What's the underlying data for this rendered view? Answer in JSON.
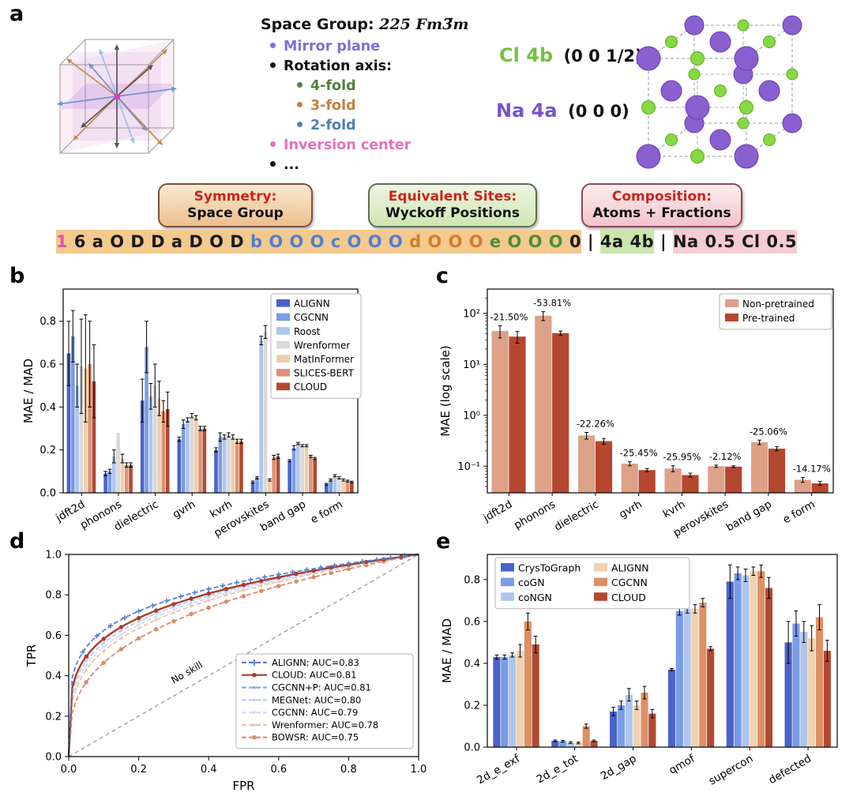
{
  "panels": {
    "a": {
      "label": "a",
      "space_group_label": "Space Group:",
      "space_group_value": "225 Fm3̅m",
      "legend_bullets": [
        {
          "text": "Mirror plane",
          "color": "#7a70d8",
          "level": 1
        },
        {
          "text": "Rotation axis:",
          "color": "#111111",
          "level": 1
        },
        {
          "text": "4-fold",
          "color": "#55803c",
          "level": 2
        },
        {
          "text": "3-fold",
          "color": "#c5803e",
          "level": 2
        },
        {
          "text": "2-fold",
          "color": "#4f7fba",
          "level": 2
        },
        {
          "text": "Inversion center",
          "color": "#e671bb",
          "level": 1
        },
        {
          "text": "...",
          "color": "#111111",
          "level": 1
        }
      ],
      "sites": [
        {
          "element_label": "Cl 4b",
          "coords": "(0 0 1/2)",
          "color": "#76c043"
        },
        {
          "element_label": "Na 4a",
          "coords": "(0 0 0)",
          "color": "#7a52c8"
        }
      ],
      "concept_boxes": [
        {
          "title": "Symmetry:",
          "subtitle": "Space Group"
        },
        {
          "title": "Equivalent Sites:",
          "subtitle": "Wyckoff Positions"
        },
        {
          "title": "Composition:",
          "subtitle": "Atoms + Fractions"
        }
      ],
      "encoding_segments": [
        {
          "text": "1",
          "color": "#e84fb0",
          "bg": "#f4c98e"
        },
        {
          "text": " 6 a O D D a D O D ",
          "color": "#1a1a1a",
          "bg": "#f4c98e"
        },
        {
          "text": "b O O O c O O O ",
          "color": "#4f7fd0",
          "bg": "#f4c98e"
        },
        {
          "text": "d O O O ",
          "color": "#cf7c2e",
          "bg": "#f4c98e"
        },
        {
          "text": "e O O O ",
          "color": "#4e8c3a",
          "bg": "#f4c98e"
        },
        {
          "text": "0",
          "color": "#1a1a1a",
          "bg": "#f4c98e"
        },
        {
          "text": " | ",
          "color": "#1a1a1a",
          "bg": ""
        },
        {
          "text": "4a 4b",
          "color": "#1a1a1a",
          "bg": "#cbe5ae"
        },
        {
          "text": " | ",
          "color": "#1a1a1a",
          "bg": ""
        },
        {
          "text": "Na 0.5 Cl 0.5",
          "color": "#1a1a1a",
          "bg": "#f6ccd4"
        }
      ]
    },
    "b": {
      "label": "b"
    },
    "c": {
      "label": "c"
    },
    "d": {
      "label": "d"
    },
    "e": {
      "label": "e"
    }
  },
  "chart_data": [
    {
      "panel": "b",
      "type": "bar",
      "ylabel": "MAE / MAD",
      "ylim": [
        0,
        0.95
      ],
      "yticks": [
        {
          "v": 0.0,
          "label": "0.0"
        },
        {
          "v": 0.2,
          "label": "0.2"
        },
        {
          "v": 0.4,
          "label": "0.4"
        },
        {
          "v": 0.6,
          "label": "0.6"
        },
        {
          "v": 0.8,
          "label": "0.8"
        }
      ],
      "categories": [
        "jdft2d",
        "phonons",
        "dielectric",
        "gvrh",
        "kvrh",
        "perovskites",
        "band gap",
        "e form"
      ],
      "legend_position": "upper right",
      "series": [
        {
          "name": "ALIGNN",
          "color": "#4a63c8",
          "values": [
            0.65,
            0.09,
            0.43,
            0.25,
            0.2,
            0.05,
            0.15,
            0.04
          ],
          "errors": [
            0.15,
            0.01,
            0.1,
            0.01,
            0.01,
            0.005,
            0.005,
            0.004
          ]
        },
        {
          "name": "CGCNN",
          "color": "#7b9ce6",
          "values": [
            0.73,
            0.1,
            0.68,
            0.32,
            0.26,
            0.07,
            0.21,
            0.06
          ],
          "errors": [
            0.12,
            0.01,
            0.12,
            0.02,
            0.02,
            0.005,
            0.01,
            0.005
          ]
        },
        {
          "name": "Roost",
          "color": "#aec6ec",
          "values": [
            0.5,
            0.17,
            0.45,
            0.34,
            0.26,
            0.71,
            0.23,
            0.08
          ],
          "errors": [
            0.1,
            0.03,
            0.06,
            0.01,
            0.01,
            0.02,
            0.005,
            0.005
          ]
        },
        {
          "name": "Wrenformer",
          "color": "#d9d9d9",
          "values": [
            0.59,
            0.28,
            0.5,
            0.36,
            0.27,
            0.75,
            0.22,
            0.07
          ],
          "errors": [
            0.22,
            0.0,
            0.1,
            0.01,
            0.01,
            0.03,
            0.005,
            0.005
          ]
        },
        {
          "name": "MatInFormer",
          "color": "#eccfad",
          "values": [
            0.58,
            0.16,
            0.44,
            0.35,
            0.26,
            0.06,
            0.22,
            0.06
          ],
          "errors": [
            0.25,
            0.02,
            0.08,
            0.01,
            0.01,
            0.005,
            0.005,
            0.005
          ]
        },
        {
          "name": "SLICES-BERT",
          "color": "#dc9377",
          "values": [
            0.6,
            0.13,
            0.38,
            0.3,
            0.24,
            0.165,
            0.17,
            0.055
          ],
          "errors": [
            0.2,
            0.01,
            0.05,
            0.01,
            0.01,
            0.01,
            0.005,
            0.004
          ]
        },
        {
          "name": "CLOUD",
          "color": "#b04a32",
          "values": [
            0.52,
            0.13,
            0.39,
            0.3,
            0.24,
            0.17,
            0.16,
            0.05
          ],
          "errors": [
            0.17,
            0.01,
            0.08,
            0.01,
            0.01,
            0.01,
            0.005,
            0.004
          ]
        }
      ]
    },
    {
      "panel": "c",
      "type": "bar",
      "yscale": "log",
      "ylabel": "MAE (log scale)",
      "ylim": [
        0.03,
        300
      ],
      "yticks": [
        {
          "v": 0.1,
          "label": "10⁻¹"
        },
        {
          "v": 1,
          "label": "10⁰"
        },
        {
          "v": 10,
          "label": "10¹"
        },
        {
          "v": 100,
          "label": "10²"
        }
      ],
      "categories": [
        "jdft2d",
        "phonons",
        "dielectric",
        "gvrh",
        "kvrh",
        "perovskites",
        "band gap",
        "e form"
      ],
      "annotations": [
        "-21.50%",
        "-53.81%",
        "-22.26%",
        "-25.45%",
        "-25.95%",
        "-2.12%",
        "-25.06%",
        "-14.17%"
      ],
      "legend_position": "upper right",
      "series": [
        {
          "name": "Non-pretrained",
          "color": "#dda189",
          "values": [
            45,
            90,
            0.4,
            0.112,
            0.09,
            0.1,
            0.295,
            0.054
          ],
          "errors": [
            12,
            18,
            0.06,
            0.01,
            0.012,
            0.005,
            0.03,
            0.006
          ]
        },
        {
          "name": "Pre-trained",
          "color": "#b4472f",
          "values": [
            35,
            41,
            0.31,
            0.084,
            0.067,
            0.098,
            0.221,
            0.046
          ],
          "errors": [
            9,
            4,
            0.04,
            0.006,
            0.006,
            0.004,
            0.02,
            0.004
          ]
        }
      ]
    },
    {
      "panel": "d",
      "type": "line",
      "xlabel": "FPR",
      "ylabel": "TPR",
      "xlim": [
        0,
        1
      ],
      "ylim": [
        0,
        1
      ],
      "xticks": [
        {
          "v": 0.0,
          "label": "0.0"
        },
        {
          "v": 0.2,
          "label": "0.2"
        },
        {
          "v": 0.4,
          "label": "0.4"
        },
        {
          "v": 0.6,
          "label": "0.6"
        },
        {
          "v": 0.8,
          "label": "0.8"
        },
        {
          "v": 1.0,
          "label": "1.0"
        }
      ],
      "yticks": [
        {
          "v": 0.0,
          "label": "0.0"
        },
        {
          "v": 0.2,
          "label": "0.2"
        },
        {
          "v": 0.4,
          "label": "0.4"
        },
        {
          "v": 0.6,
          "label": "0.6"
        },
        {
          "v": 0.8,
          "label": "0.8"
        },
        {
          "v": 1.0,
          "label": "1.0"
        }
      ],
      "no_skill_label": "No skill",
      "curves": [
        {
          "name": "ALIGNN: AUC=0.83",
          "auc": 0.83,
          "color": "#5d7fd3",
          "dash": true,
          "marker": "plus"
        },
        {
          "name": "CLOUD: AUC=0.81",
          "auc": 0.81,
          "color": "#a63f2b",
          "dash": false,
          "marker": "circle"
        },
        {
          "name": "CGCNN+P: AUC=0.81",
          "auc": 0.81,
          "color": "#8da9e6",
          "dash": true,
          "marker": "dot"
        },
        {
          "name": "MEGNet: AUC=0.80",
          "auc": 0.8,
          "color": "#b9cbee",
          "dash": true,
          "marker": "dot"
        },
        {
          "name": "CGCNN: AUC=0.79",
          "auc": 0.79,
          "color": "#d3def4",
          "dash": true,
          "marker": "dot"
        },
        {
          "name": "Wrenformer: AUC=0.78",
          "auc": 0.78,
          "color": "#ecc4ab",
          "dash": true,
          "marker": "dot"
        },
        {
          "name": "BOWSR: AUC=0.75",
          "auc": 0.75,
          "color": "#d98a6a",
          "dash": true,
          "marker": "circle"
        }
      ]
    },
    {
      "panel": "e",
      "type": "bar",
      "ylabel": "MAE / MAD",
      "ylim": [
        0,
        0.92
      ],
      "yticks": [
        {
          "v": 0.0,
          "label": "0.0"
        },
        {
          "v": 0.2,
          "label": "0.2"
        },
        {
          "v": 0.4,
          "label": "0.4"
        },
        {
          "v": 0.6,
          "label": "0.6"
        },
        {
          "v": 0.8,
          "label": "0.8"
        }
      ],
      "categories": [
        "2d_e_exf",
        "2d_e_tot",
        "2d_gap",
        "qmof",
        "supercon",
        "defected"
      ],
      "legend_position": "upper left",
      "series": [
        {
          "name": "CrysToGraph",
          "color": "#4a63c8",
          "values": [
            0.43,
            0.03,
            0.17,
            0.37,
            0.79,
            0.5
          ],
          "errors": [
            0.01,
            0.004,
            0.02,
            0.005,
            0.08,
            0.1
          ]
        },
        {
          "name": "coGN",
          "color": "#7b9ce6",
          "values": [
            0.43,
            0.028,
            0.2,
            0.65,
            0.83,
            0.59
          ],
          "errors": [
            0.01,
            0.004,
            0.02,
            0.02,
            0.03,
            0.06
          ]
        },
        {
          "name": "coNGN",
          "color": "#aec6ec",
          "values": [
            0.44,
            0.022,
            0.25,
            0.66,
            0.82,
            0.55
          ],
          "errors": [
            0.01,
            0.004,
            0.03,
            0.02,
            0.03,
            0.05
          ]
        },
        {
          "name": "ALIGNN",
          "color": "#eed2b2",
          "values": [
            0.46,
            0.02,
            0.2,
            0.66,
            0.84,
            0.52
          ],
          "errors": [
            0.03,
            0.004,
            0.02,
            0.02,
            0.02,
            0.06
          ]
        },
        {
          "name": "CGCNN",
          "color": "#dd9066",
          "values": [
            0.6,
            0.1,
            0.26,
            0.69,
            0.84,
            0.62
          ],
          "errors": [
            0.04,
            0.01,
            0.03,
            0.02,
            0.03,
            0.06
          ]
        },
        {
          "name": "CLOUD",
          "color": "#b04a32",
          "values": [
            0.49,
            0.03,
            0.16,
            0.47,
            0.76,
            0.46
          ],
          "errors": [
            0.04,
            0.004,
            0.02,
            0.01,
            0.05,
            0.05
          ]
        }
      ]
    }
  ]
}
